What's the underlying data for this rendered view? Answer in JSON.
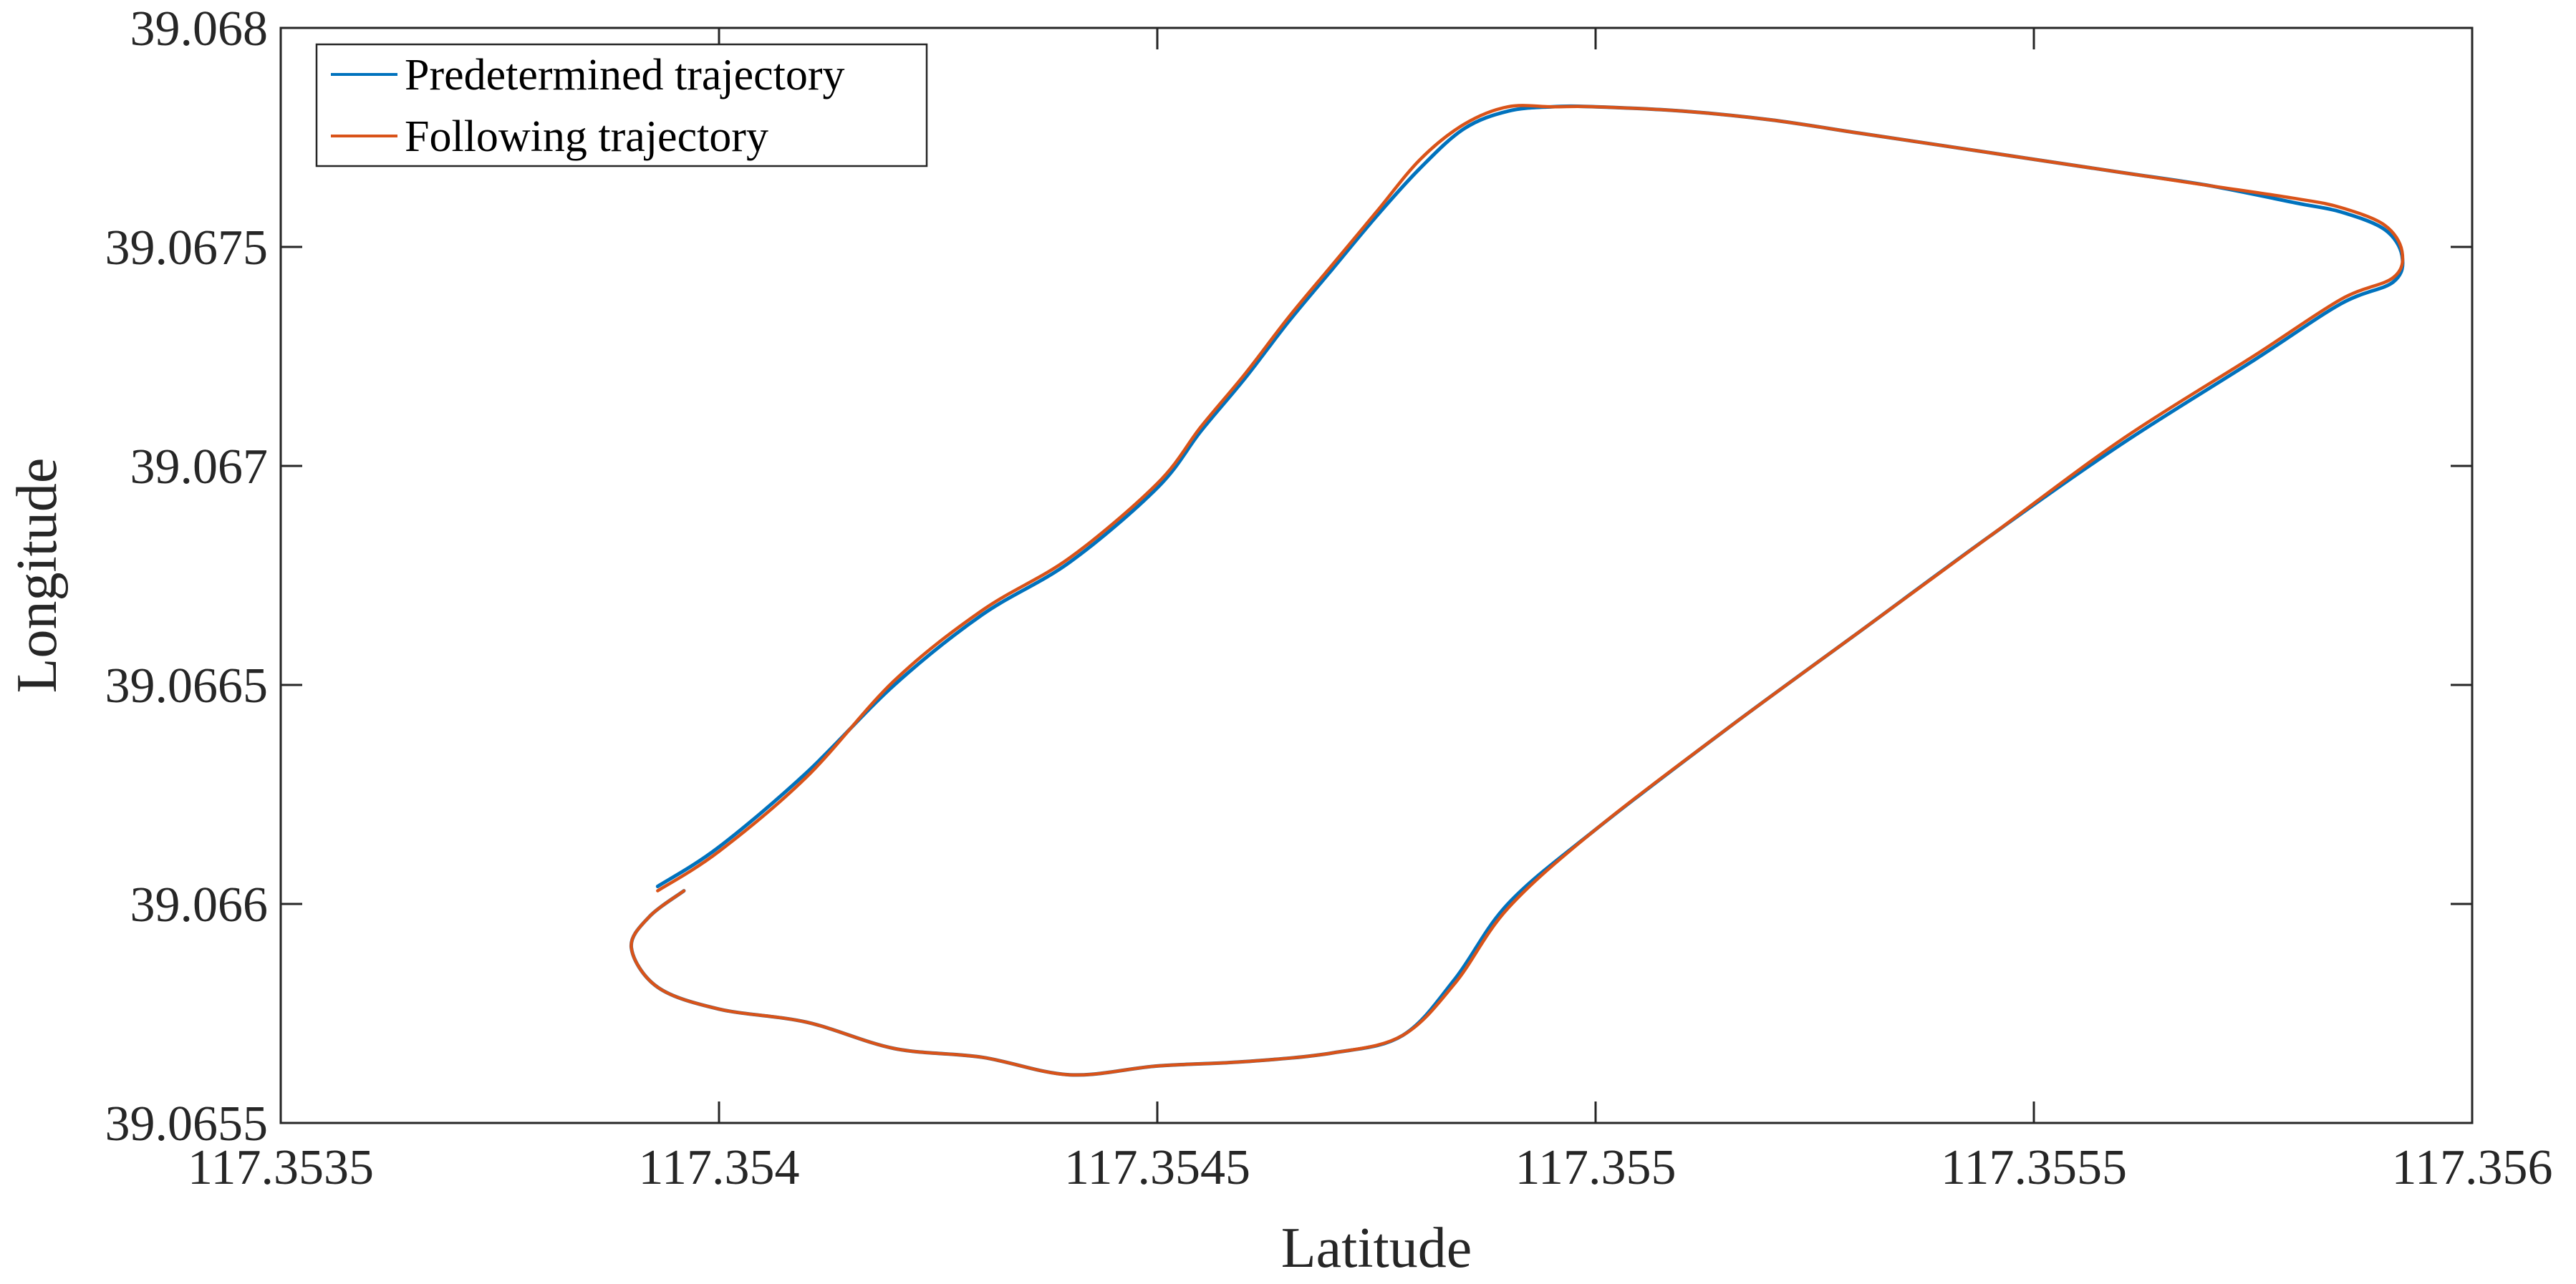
{
  "chart_data": {
    "type": "line",
    "title": "",
    "xlabel": "Latitude",
    "ylabel": "Longitude",
    "xlim": [
      117.3535,
      117.356
    ],
    "ylim": [
      39.0655,
      39.068
    ],
    "xticks": [
      117.3535,
      117.354,
      117.3545,
      117.355,
      117.3555,
      117.356
    ],
    "xtick_labels": [
      "117.3535",
      "117.354",
      "117.3545",
      "117.355",
      "117.3555",
      "117.356"
    ],
    "yticks": [
      39.0655,
      39.066,
      39.0665,
      39.067,
      39.0675,
      39.068
    ],
    "ytick_labels": [
      "39.0655",
      "39.066",
      "39.0665",
      "39.067",
      "39.0675",
      "39.068"
    ],
    "grid": false,
    "legend_position": "top-left",
    "series": [
      {
        "name": "Predetermined trajectory",
        "color": "#0072BD",
        "x": [
          117.35393,
          117.354,
          117.3541,
          117.3542,
          117.3543,
          117.3544,
          117.3545,
          117.35455,
          117.3546,
          117.35465,
          117.3547,
          117.35475,
          117.3548,
          117.35485,
          117.3549,
          117.35495,
          117.355,
          117.3551,
          117.3552,
          117.3553,
          117.3554,
          117.3555,
          117.3556,
          117.3557,
          117.3558,
          117.35585,
          117.3559,
          117.35592,
          117.35591,
          117.35585,
          117.35575,
          117.3556,
          117.35545,
          117.3553,
          117.35515,
          117.355,
          117.3549,
          117.35484,
          117.35478,
          117.3547,
          117.3546,
          117.3545,
          117.3544,
          117.3543,
          117.3542,
          117.3541,
          117.354,
          117.35393,
          117.3539,
          117.35392,
          117.35396
        ],
        "y": [
          39.06604,
          39.06613,
          39.0663,
          39.0665,
          39.06666,
          39.06678,
          39.06695,
          39.06708,
          39.0672,
          39.06733,
          39.06745,
          39.06757,
          39.06768,
          39.06777,
          39.06781,
          39.06782,
          39.06782,
          39.06781,
          39.06779,
          39.06776,
          39.06773,
          39.0677,
          39.06767,
          39.06764,
          39.0676,
          39.06758,
          39.06754,
          39.06748,
          39.06742,
          39.06737,
          39.06724,
          39.06705,
          39.06684,
          39.06662,
          39.0664,
          39.06617,
          39.066,
          39.06583,
          39.0657,
          39.06566,
          39.06564,
          39.06563,
          39.06561,
          39.06565,
          39.06567,
          39.06573,
          39.06576,
          39.06581,
          39.0659,
          39.06597,
          39.06603
        ]
      },
      {
        "name": "Following trajectory",
        "color": "#D95319",
        "x": [
          117.35393,
          117.354,
          117.3541,
          117.3542,
          117.3543,
          117.3544,
          117.3545,
          117.35455,
          117.3546,
          117.35465,
          117.3547,
          117.35475,
          117.3548,
          117.35485,
          117.3549,
          117.35495,
          117.355,
          117.3551,
          117.3552,
          117.3553,
          117.3554,
          117.3555,
          117.3556,
          117.3557,
          117.3558,
          117.35585,
          117.3559,
          117.35592,
          117.35591,
          117.35585,
          117.35575,
          117.3556,
          117.35545,
          117.3553,
          117.35515,
          117.355,
          117.3549,
          117.35484,
          117.35478,
          117.3547,
          117.3546,
          117.3545,
          117.3544,
          117.3543,
          117.3542,
          117.3541,
          117.354,
          117.35393,
          117.3539,
          117.35392,
          117.35396
        ],
        "y": [
          39.06603,
          39.06612,
          39.06629,
          39.06651,
          39.06667,
          39.06679,
          39.06696,
          39.06709,
          39.06721,
          39.06734,
          39.06746,
          39.06758,
          39.0677,
          39.06778,
          39.06782,
          39.06782,
          39.06782,
          39.06781,
          39.06779,
          39.06776,
          39.06773,
          39.0677,
          39.06767,
          39.06764,
          39.06761,
          39.06759,
          39.06755,
          39.06749,
          39.06743,
          39.06738,
          39.06725,
          39.06706,
          39.06684,
          39.06662,
          39.0664,
          39.06617,
          39.06599,
          39.06582,
          39.0657,
          39.06566,
          39.06564,
          39.06563,
          39.06561,
          39.06565,
          39.06567,
          39.06573,
          39.06576,
          39.06581,
          39.0659,
          39.06597,
          39.06603
        ]
      }
    ]
  }
}
